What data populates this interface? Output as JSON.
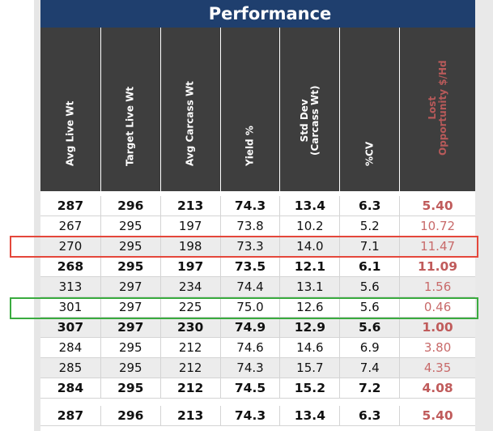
{
  "title": "Performance",
  "columns": [
    {
      "label": "Avg Live Wt"
    },
    {
      "label": "Target Live Wt"
    },
    {
      "label": "Avg Carcass Wt"
    },
    {
      "label": "Yield %"
    },
    {
      "label": "Std Dev\n(Carcass Wt)"
    },
    {
      "label": "%CV"
    },
    {
      "label": "Lost\nOpportunity $/Hd"
    }
  ],
  "rows": [
    {
      "bold": true,
      "alt": false,
      "highlight": "",
      "values": [
        "287",
        "296",
        "213",
        "74.3",
        "13.4",
        "6.3",
        "5.40"
      ]
    },
    {
      "bold": false,
      "alt": false,
      "highlight": "",
      "values": [
        "267",
        "295",
        "197",
        "73.8",
        "10.2",
        "5.2",
        "10.72"
      ]
    },
    {
      "bold": false,
      "alt": true,
      "highlight": "red",
      "values": [
        "270",
        "295",
        "198",
        "73.3",
        "14.0",
        "7.1",
        "11.47"
      ]
    },
    {
      "bold": true,
      "alt": false,
      "highlight": "",
      "values": [
        "268",
        "295",
        "197",
        "73.5",
        "12.1",
        "6.1",
        "11.09"
      ]
    },
    {
      "bold": false,
      "alt": true,
      "highlight": "",
      "values": [
        "313",
        "297",
        "234",
        "74.4",
        "13.1",
        "5.6",
        "1.56"
      ]
    },
    {
      "bold": false,
      "alt": false,
      "highlight": "green",
      "values": [
        "301",
        "297",
        "225",
        "75.0",
        "12.6",
        "5.6",
        "0.46"
      ]
    },
    {
      "bold": true,
      "alt": true,
      "highlight": "",
      "values": [
        "307",
        "297",
        "230",
        "74.9",
        "12.9",
        "5.6",
        "1.00"
      ]
    },
    {
      "bold": false,
      "alt": false,
      "highlight": "",
      "values": [
        "284",
        "295",
        "212",
        "74.6",
        "14.6",
        "6.9",
        "3.80"
      ]
    },
    {
      "bold": false,
      "alt": true,
      "highlight": "",
      "values": [
        "285",
        "295",
        "212",
        "74.3",
        "15.7",
        "7.4",
        "4.35"
      ]
    },
    {
      "bold": true,
      "alt": false,
      "highlight": "",
      "values": [
        "284",
        "295",
        "212",
        "74.5",
        "15.2",
        "7.2",
        "4.08"
      ]
    }
  ],
  "total": {
    "values": [
      "287",
      "296",
      "213",
      "74.3",
      "13.4",
      "6.3",
      "5.40"
    ]
  },
  "colors": {
    "title_bg": "#1f3f6e",
    "header_bg": "#3e3e3e",
    "lost_text": "#c86a6a",
    "highlight_red": "#e4473b",
    "highlight_green": "#3aab3f"
  }
}
